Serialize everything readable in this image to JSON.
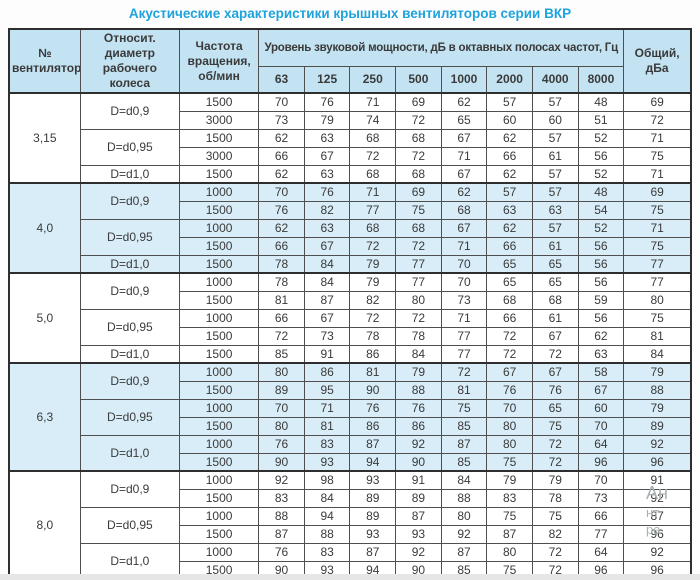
{
  "title": "Акустические характеристики крышных вентиляторов серии ВКР",
  "colors": {
    "title_accent": "#1ea3dc",
    "header_bg": "#c3e3f2",
    "shaded_group_bg": "#d8edf8",
    "border_dark": "#2e2e2e",
    "border_inner": "#4f4f4f",
    "text": "#3a3a3a",
    "watermark": "#a9b1b3"
  },
  "watermark": {
    "lines": [
      "Ан",
      "нт",
      "ра"
    ]
  },
  "table": {
    "headers": {
      "fan": "№ вентилятора",
      "diameter": "Относит. диаметр рабочего колеса",
      "speed": "Частота вращения, об/мин",
      "octave_group": "Уровень звуковой мощности, дБ в октавных полосах частот, Гц",
      "octave_bands": [
        "63",
        "125",
        "250",
        "500",
        "1000",
        "2000",
        "4000",
        "8000"
      ],
      "total": "Общий, дБа"
    },
    "groups": [
      {
        "fan": "3,15",
        "shaded": false,
        "subgroups": [
          {
            "diameter": "D=d0,9",
            "rows": [
              {
                "speed": "1500",
                "levels": [
                  70,
                  76,
                  71,
                  69,
                  62,
                  57,
                  57,
                  48
                ],
                "total": 69
              },
              {
                "speed": "3000",
                "levels": [
                  73,
                  79,
                  74,
                  72,
                  65,
                  60,
                  60,
                  51
                ],
                "total": 72
              }
            ]
          },
          {
            "diameter": "D=d0,95",
            "rows": [
              {
                "speed": "1500",
                "levels": [
                  62,
                  63,
                  68,
                  68,
                  67,
                  62,
                  57,
                  52
                ],
                "total": 71
              },
              {
                "speed": "3000",
                "levels": [
                  66,
                  67,
                  72,
                  72,
                  71,
                  66,
                  61,
                  56
                ],
                "total": 75
              }
            ]
          },
          {
            "diameter": "D=d1,0",
            "rows": [
              {
                "speed": "1500",
                "levels": [
                  62,
                  63,
                  68,
                  68,
                  67,
                  62,
                  57,
                  52
                ],
                "total": 71
              }
            ]
          }
        ]
      },
      {
        "fan": "4,0",
        "shaded": true,
        "subgroups": [
          {
            "diameter": "D=d0,9",
            "rows": [
              {
                "speed": "1000",
                "levels": [
                  70,
                  76,
                  71,
                  69,
                  62,
                  57,
                  57,
                  48
                ],
                "total": 69
              },
              {
                "speed": "1500",
                "levels": [
                  76,
                  82,
                  77,
                  75,
                  68,
                  63,
                  63,
                  54
                ],
                "total": 75
              }
            ]
          },
          {
            "diameter": "D=d0,95",
            "rows": [
              {
                "speed": "1000",
                "levels": [
                  62,
                  63,
                  68,
                  68,
                  67,
                  62,
                  57,
                  52
                ],
                "total": 71
              },
              {
                "speed": "1500",
                "levels": [
                  66,
                  67,
                  72,
                  72,
                  71,
                  66,
                  61,
                  56
                ],
                "total": 75
              }
            ]
          },
          {
            "diameter": "D=d1,0",
            "rows": [
              {
                "speed": "1500",
                "levels": [
                  78,
                  84,
                  79,
                  77,
                  70,
                  65,
                  65,
                  56
                ],
                "total": 77
              }
            ]
          }
        ]
      },
      {
        "fan": "5,0",
        "shaded": false,
        "subgroups": [
          {
            "diameter": "D=d0,9",
            "rows": [
              {
                "speed": "1000",
                "levels": [
                  78,
                  84,
                  79,
                  77,
                  70,
                  65,
                  65,
                  56
                ],
                "total": 77
              },
              {
                "speed": "1500",
                "levels": [
                  81,
                  87,
                  82,
                  80,
                  73,
                  68,
                  68,
                  59
                ],
                "total": 80
              }
            ]
          },
          {
            "diameter": "D=d0,95",
            "rows": [
              {
                "speed": "1000",
                "levels": [
                  66,
                  67,
                  72,
                  72,
                  71,
                  66,
                  61,
                  56
                ],
                "total": 75
              },
              {
                "speed": "1500",
                "levels": [
                  72,
                  73,
                  78,
                  78,
                  77,
                  72,
                  67,
                  62
                ],
                "total": 81
              }
            ]
          },
          {
            "diameter": "D=d1,0",
            "rows": [
              {
                "speed": "1500",
                "levels": [
                  85,
                  91,
                  86,
                  84,
                  77,
                  72,
                  72,
                  63
                ],
                "total": 84
              }
            ]
          }
        ]
      },
      {
        "fan": "6,3",
        "shaded": true,
        "subgroups": [
          {
            "diameter": "D=d0,9",
            "rows": [
              {
                "speed": "1000",
                "levels": [
                  80,
                  86,
                  81,
                  79,
                  72,
                  67,
                  67,
                  58
                ],
                "total": 79
              },
              {
                "speed": "1500",
                "levels": [
                  89,
                  95,
                  90,
                  88,
                  81,
                  76,
                  76,
                  67
                ],
                "total": 88
              }
            ]
          },
          {
            "diameter": "D=d0,95",
            "rows": [
              {
                "speed": "1000",
                "levels": [
                  70,
                  71,
                  76,
                  76,
                  75,
                  70,
                  65,
                  60
                ],
                "total": 79
              },
              {
                "speed": "1500",
                "levels": [
                  80,
                  81,
                  86,
                  86,
                  85,
                  80,
                  75,
                  70
                ],
                "total": 89
              }
            ]
          },
          {
            "diameter": "D=d1,0",
            "rows": [
              {
                "speed": "1000",
                "levels": [
                  76,
                  83,
                  87,
                  92,
                  87,
                  80,
                  72,
                  64
                ],
                "total": 92
              },
              {
                "speed": "1500",
                "levels": [
                  90,
                  93,
                  94,
                  90,
                  85,
                  75,
                  72,
                  96
                ],
                "total": 96
              }
            ]
          }
        ]
      },
      {
        "fan": "8,0",
        "shaded": false,
        "subgroups": [
          {
            "diameter": "D=d0,9",
            "rows": [
              {
                "speed": "1000",
                "levels": [
                  92,
                  98,
                  93,
                  91,
                  84,
                  79,
                  79,
                  70
                ],
                "total": 91
              },
              {
                "speed": "1500",
                "levels": [
                  83,
                  84,
                  89,
                  89,
                  88,
                  83,
                  78,
                  73
                ],
                "total": 92
              }
            ]
          },
          {
            "diameter": "D=d0,95",
            "rows": [
              {
                "speed": "1000",
                "levels": [
                  88,
                  94,
                  89,
                  87,
                  80,
                  75,
                  75,
                  66
                ],
                "total": 87
              },
              {
                "speed": "1500",
                "levels": [
                  87,
                  88,
                  93,
                  93,
                  92,
                  87,
                  82,
                  77
                ],
                "total": 96
              }
            ]
          },
          {
            "diameter": "D=d1,0",
            "rows": [
              {
                "speed": "1000",
                "levels": [
                  76,
                  83,
                  87,
                  92,
                  87,
                  80,
                  72,
                  64
                ],
                "total": 92
              },
              {
                "speed": "1500",
                "levels": [
                  90,
                  93,
                  94,
                  90,
                  85,
                  75,
                  72,
                  96
                ],
                "total": 96
              }
            ]
          }
        ]
      }
    ]
  }
}
